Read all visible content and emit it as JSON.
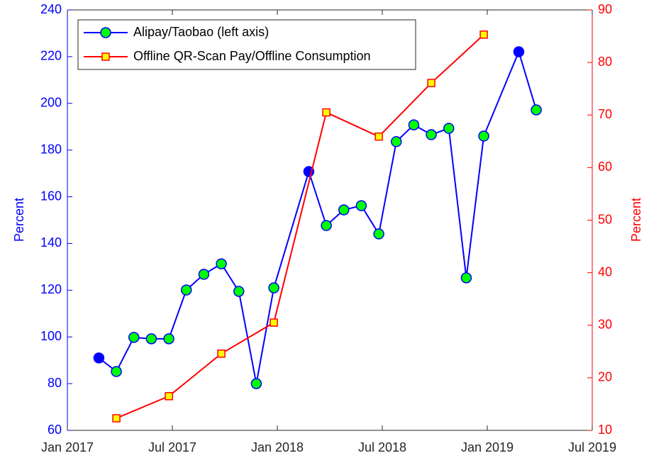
{
  "chart_data": {
    "type": "line",
    "xlim": [
      "2017-01",
      "2019-07"
    ],
    "xticks": [
      {
        "value": "2017-01",
        "label": "Jan 2017"
      },
      {
        "value": "2017-07",
        "label": "Jul 2017"
      },
      {
        "value": "2018-01",
        "label": "Jan 2018"
      },
      {
        "value": "2018-07",
        "label": "Jul 2018"
      },
      {
        "value": "2019-01",
        "label": "Jan 2019"
      },
      {
        "value": "2019-07",
        "label": "Jul 2019"
      }
    ],
    "ylabel": "Percent",
    "y2label": "Percent",
    "ylim": [
      60,
      240
    ],
    "yticks": [
      60,
      80,
      100,
      120,
      140,
      160,
      180,
      200,
      220,
      240
    ],
    "y2lim": [
      10,
      90
    ],
    "y2ticks": [
      10,
      20,
      30,
      40,
      50,
      60,
      70,
      80,
      90
    ],
    "legend": "upper left",
    "series": [
      {
        "name": "Alipay/Taobao (left axis)",
        "color": "#0000ff",
        "marker": "circle",
        "marker_fill": "#00ff00",
        "x": [
          "2017-02",
          "2017-03",
          "2017-04",
          "2017-05",
          "2017-06",
          "2017-07",
          "2017-08",
          "2017-09",
          "2017-10",
          "2017-11",
          "2017-12",
          "2018-02",
          "2018-03",
          "2018-04",
          "2018-05",
          "2018-06",
          "2018-07",
          "2018-08",
          "2018-09",
          "2018-10",
          "2018-11",
          "2018-12",
          "2019-02",
          "2019-03"
        ],
        "values": [
          91,
          85.2,
          99.8,
          99.2,
          99.2,
          120.1,
          126.8,
          131.3,
          119.5,
          80,
          121,
          170.8,
          147.7,
          154.4,
          156.2,
          144.1,
          183.6,
          190.8,
          186.6,
          189.3,
          125.3,
          186,
          222.1,
          197.2
        ],
        "marker_colors": [
          "#0000ff",
          "#00ff00",
          "#00ff00",
          "#00ff00",
          "#00ff00",
          "#00ff00",
          "#00ff00",
          "#00ff00",
          "#00ff00",
          "#00ff00",
          "#00ff00",
          "#0000ff",
          "#00ff00",
          "#00ff00",
          "#00ff00",
          "#00ff00",
          "#00ff00",
          "#00ff00",
          "#00ff00",
          "#00ff00",
          "#00ff00",
          "#00ff00",
          "#0000ff",
          "#00ff00"
        ]
      },
      {
        "name": "Offline QR-Scan Pay/Offline Consumption",
        "color": "#ff0000",
        "marker": "square",
        "marker_fill": "#ffff00",
        "axis": "y2",
        "x": [
          "2017-03",
          "2017-06",
          "2017-09",
          "2017-12",
          "2018-03",
          "2018-06",
          "2018-09",
          "2018-12"
        ],
        "values": [
          12.3,
          16.5,
          24.6,
          30.5,
          70.5,
          65.9,
          76.1,
          85.3
        ]
      }
    ]
  }
}
